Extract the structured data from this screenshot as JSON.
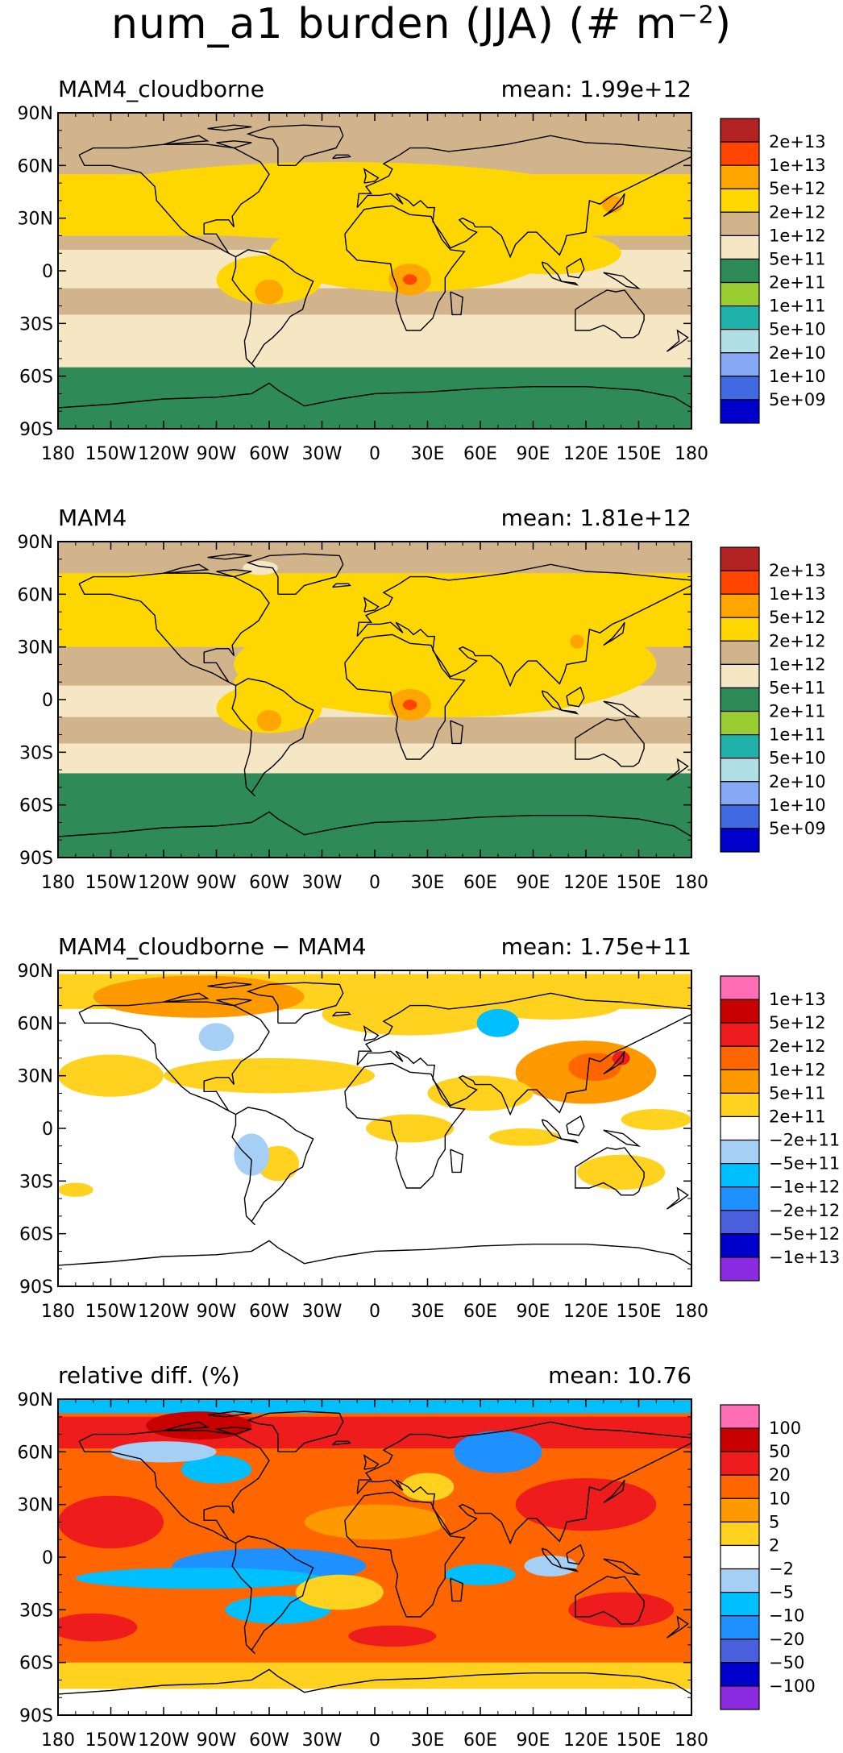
{
  "figure": {
    "title_main": "num_a1 burden (JJA) (# m",
    "title_sup": "−2",
    "title_end": ")"
  },
  "axes": {
    "lat_labels": [
      "90N",
      "60N",
      "30N",
      "0",
      "30S",
      "60S",
      "90S"
    ],
    "lon_labels": [
      "180",
      "150W",
      "120W",
      "90W",
      "60W",
      "30W",
      "0",
      "30E",
      "60E",
      "90E",
      "120E",
      "150E",
      "180"
    ]
  },
  "chart_data": [
    {
      "type": "heatmap",
      "panel": "MAM4_cloudborne",
      "title_left": "MAM4_cloudborne",
      "title_right": "mean:  1.99e+12",
      "mean": 1990000000000.0,
      "xlim": [
        -180,
        180
      ],
      "ylim": [
        -90,
        90
      ],
      "colorbar": {
        "labels": [
          "2e+13",
          "1e+13",
          "5e+12",
          "2e+12",
          "1e+12",
          "5e+11",
          "2e+11",
          "1e+11",
          "5e+10",
          "2e+10",
          "1e+10",
          "5e+09"
        ],
        "colors": [
          "#b22222",
          "#ff4500",
          "#ffa500",
          "#ffd700",
          "#d2b48c",
          "#f5e6c4",
          "#2e8b57",
          "#9acd32",
          "#20b2aa",
          "#b0e0e6",
          "#87a8f5",
          "#4169e1",
          "#0000cd"
        ]
      }
    },
    {
      "type": "heatmap",
      "panel": "MAM4",
      "title_left": "MAM4",
      "title_right": "mean:  1.81e+12",
      "mean": 1810000000000.0,
      "xlim": [
        -180,
        180
      ],
      "ylim": [
        -90,
        90
      ],
      "colorbar": {
        "labels": [
          "2e+13",
          "1e+13",
          "5e+12",
          "2e+12",
          "1e+12",
          "5e+11",
          "2e+11",
          "1e+11",
          "5e+10",
          "2e+10",
          "1e+10",
          "5e+09"
        ],
        "colors": [
          "#b22222",
          "#ff4500",
          "#ffa500",
          "#ffd700",
          "#d2b48c",
          "#f5e6c4",
          "#2e8b57",
          "#9acd32",
          "#20b2aa",
          "#b0e0e6",
          "#87a8f5",
          "#4169e1",
          "#0000cd"
        ]
      }
    },
    {
      "type": "heatmap",
      "panel": "difference",
      "title_left": "MAM4_cloudborne − MAM4",
      "title_right": "mean:  1.75e+11",
      "mean": 175000000000.0,
      "xlim": [
        -180,
        180
      ],
      "ylim": [
        -90,
        90
      ],
      "colorbar": {
        "labels": [
          "1e+13",
          "5e+12",
          "2e+12",
          "1e+12",
          "5e+11",
          "2e+11",
          "−2e+11",
          "−5e+11",
          "−1e+12",
          "−2e+12",
          "−5e+12",
          "−1e+13"
        ],
        "colors": [
          "#ff6eb4",
          "#c80000",
          "#ee1c1c",
          "#ff6600",
          "#ff9900",
          "#ffd21f",
          "#ffffff",
          "#a6cff5",
          "#00bfff",
          "#1e90ff",
          "#4a5fdc",
          "#0000cd",
          "#8a2be2"
        ]
      }
    },
    {
      "type": "heatmap",
      "panel": "relative diff.",
      "title_left": "relative diff. (%)",
      "title_right": "mean:  10.76",
      "mean": 10.76,
      "xlim": [
        -180,
        180
      ],
      "ylim": [
        -90,
        90
      ],
      "colorbar": {
        "labels": [
          "100",
          "50",
          "20",
          "10",
          "5",
          "2",
          "−2",
          "−5",
          "−10",
          "−20",
          "−50",
          "−100"
        ],
        "colors": [
          "#ff6eb4",
          "#c80000",
          "#ee1c1c",
          "#ff6600",
          "#ff9900",
          "#ffd21f",
          "#ffffff",
          "#a6cff5",
          "#00bfff",
          "#1e90ff",
          "#4a5fdc",
          "#0000cd",
          "#8a2be2"
        ]
      }
    }
  ]
}
